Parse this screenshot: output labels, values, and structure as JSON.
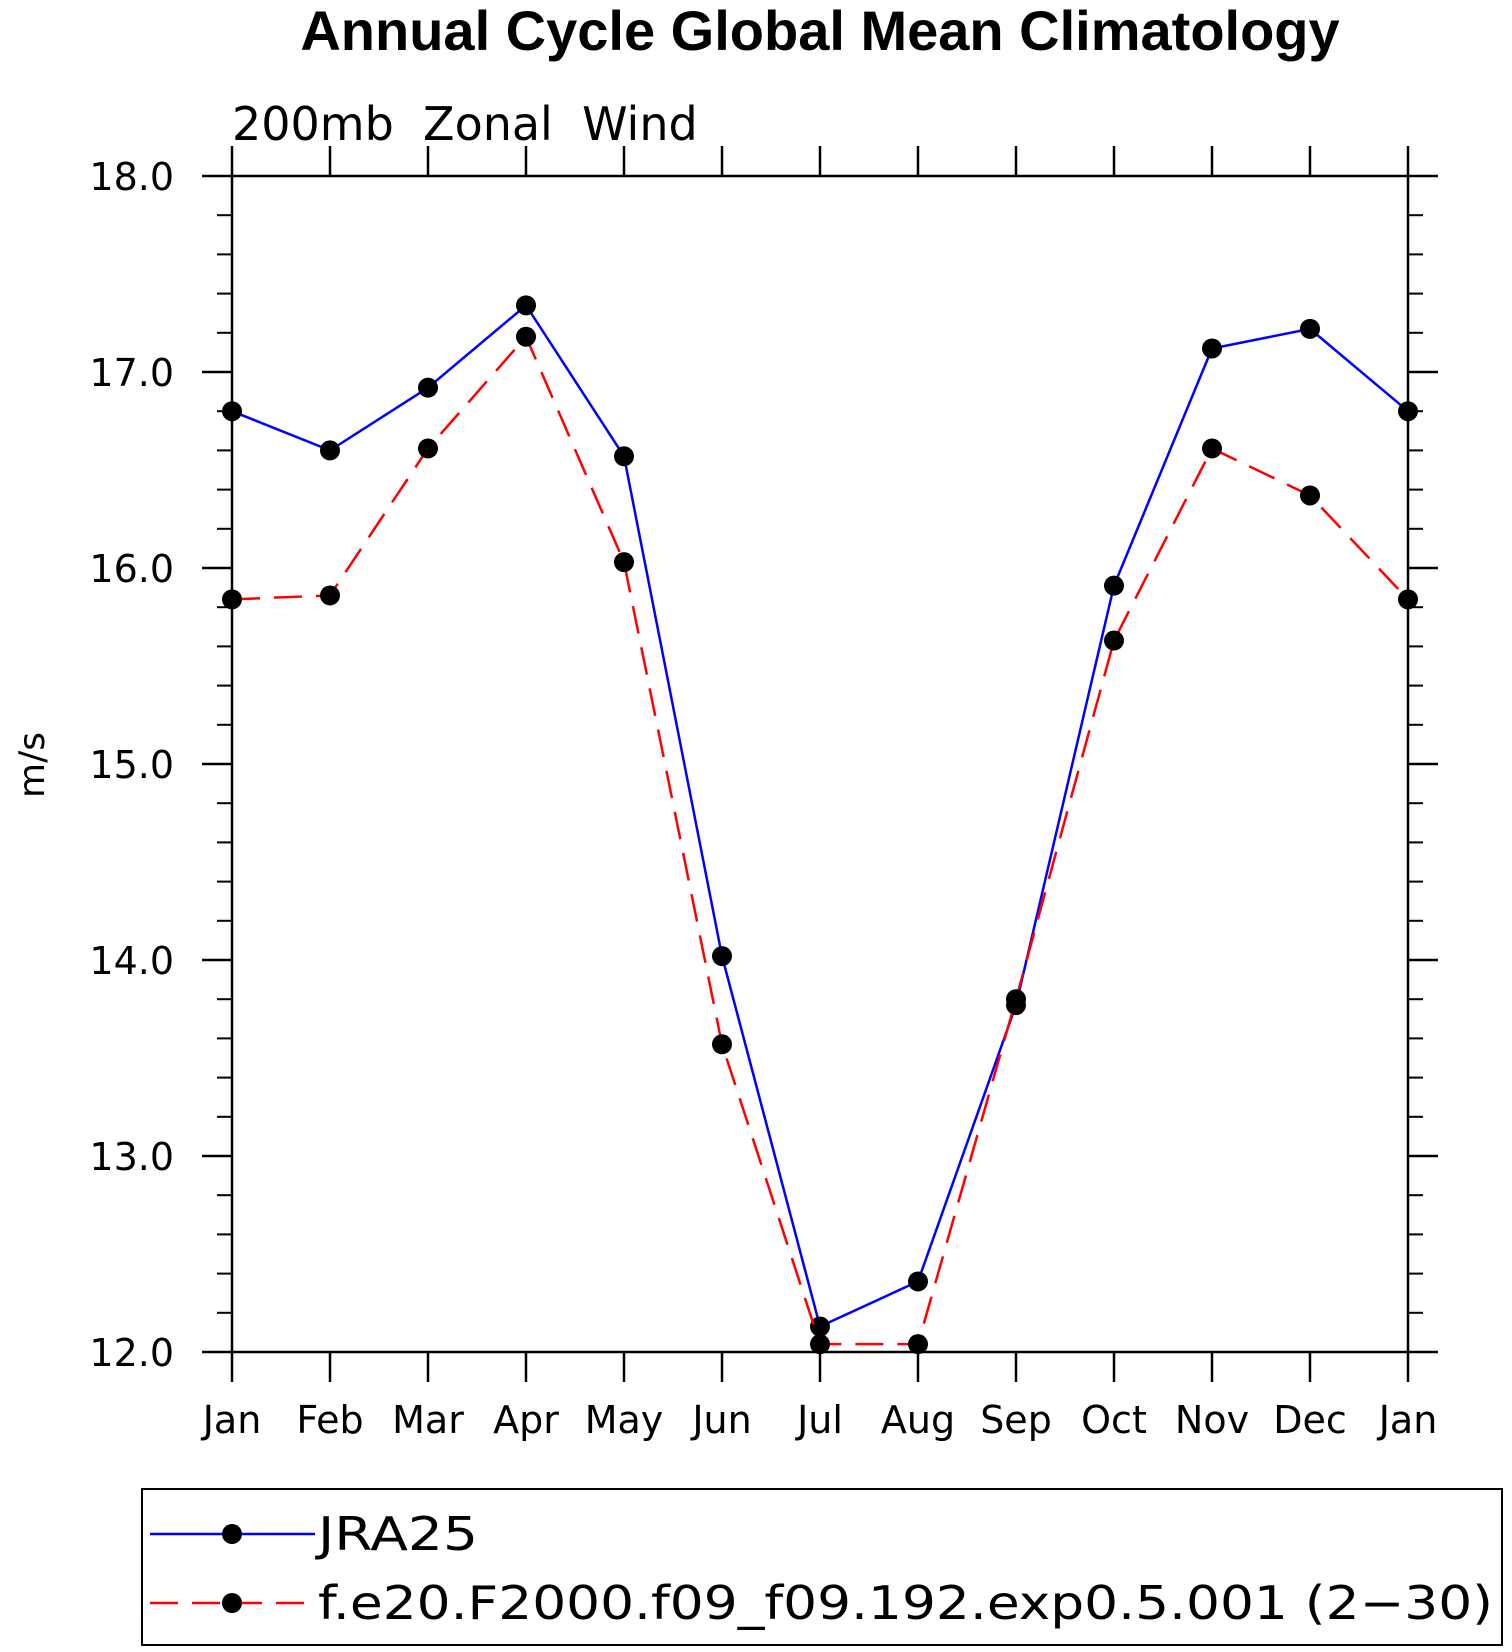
{
  "chart_data": {
    "type": "line",
    "title": "Annual Cycle Global Mean Climatology",
    "subtitle": "200mb  Zonal  Wind",
    "xlabel": "",
    "ylabel": "m/s",
    "categories": [
      "Jan",
      "Feb",
      "Mar",
      "Apr",
      "May",
      "Jun",
      "Jul",
      "Aug",
      "Sep",
      "Oct",
      "Nov",
      "Dec",
      "Jan"
    ],
    "ylim": [
      12.0,
      18.0
    ],
    "yticks": [
      "12.0",
      "13.0",
      "14.0",
      "15.0",
      "16.0",
      "17.0",
      "18.0"
    ],
    "grid": false,
    "legend_position": "bottom",
    "series": [
      {
        "name": "JRA25",
        "color": "#0000ff",
        "style": "solid",
        "values": [
          16.8,
          16.6,
          16.92,
          17.34,
          16.57,
          14.02,
          12.13,
          12.36,
          13.77,
          15.91,
          17.12,
          17.22,
          16.8
        ]
      },
      {
        "name": "f.e20.F2000.f09_f09.192.exp0.5.001 (2−30)",
        "color": "#ff0000",
        "style": "dashed",
        "values": [
          15.84,
          15.86,
          16.61,
          17.18,
          16.03,
          13.57,
          12.04,
          12.04,
          13.8,
          15.63,
          16.61,
          16.37,
          15.84
        ]
      }
    ]
  }
}
